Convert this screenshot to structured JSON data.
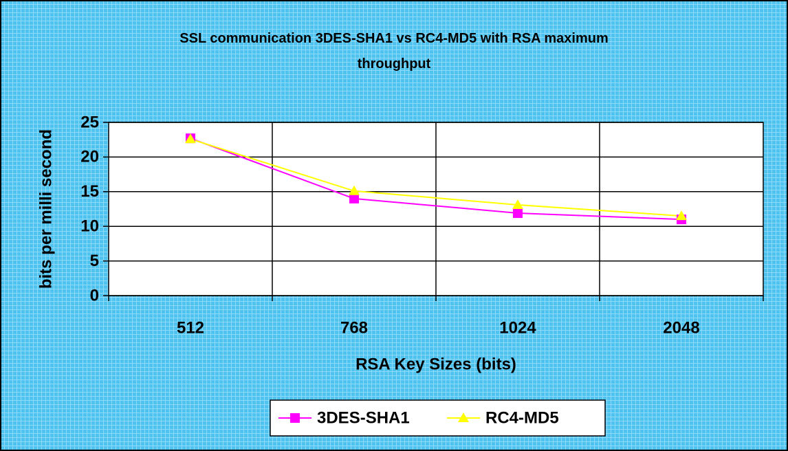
{
  "chart_data": {
    "type": "line",
    "title": "SSL communication 3DES-SHA1 vs RC4-MD5 with RSA maximum throughput",
    "x_label": "RSA Key Sizes (bits)",
    "y_label": "bits per milli second",
    "categories": [
      "512",
      "768",
      "1024",
      "2048"
    ],
    "series": [
      {
        "name": "3DES-SHA1",
        "color": "#ff00ff",
        "marker": "square",
        "values": [
          22.7,
          14,
          11.9,
          11
        ]
      },
      {
        "name": "RC4-MD5",
        "color": "#ffff00",
        "marker": "triangle",
        "values": [
          22.6,
          15.1,
          13.1,
          11.5
        ]
      }
    ],
    "ylim": [
      0,
      25
    ],
    "yticks": [
      0,
      5,
      10,
      15,
      20,
      25
    ],
    "grid": true,
    "legend": "bottom"
  }
}
